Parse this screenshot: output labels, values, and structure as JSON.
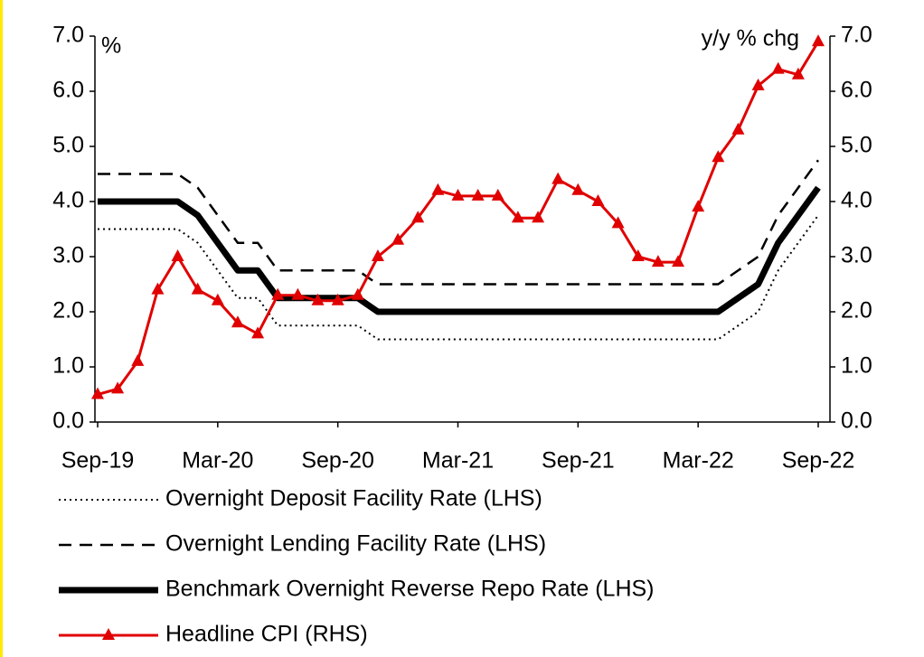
{
  "chart_data": {
    "type": "line",
    "y_label": "%",
    "y2_label": "y/y % chg",
    "categories": [
      "Sep-19",
      null,
      null,
      null,
      null,
      null,
      "Mar-20",
      null,
      null,
      null,
      null,
      null,
      "Sep-20",
      null,
      null,
      null,
      null,
      null,
      "Mar-21",
      null,
      null,
      null,
      null,
      null,
      "Sep-21",
      null,
      null,
      null,
      null,
      null,
      "Mar-22",
      null,
      null,
      null,
      null,
      null,
      "Sep-22"
    ],
    "ylim": [
      0,
      7
    ],
    "yticks": [
      {
        "value": 0,
        "label": "0.0"
      },
      {
        "value": 1,
        "label": "1.0"
      },
      {
        "value": 2,
        "label": "2.0"
      },
      {
        "value": 3,
        "label": "3.0"
      },
      {
        "value": 4,
        "label": "4.0"
      },
      {
        "value": 5,
        "label": "5.0"
      },
      {
        "value": 6,
        "label": "6.0"
      },
      {
        "value": 7,
        "label": "7.0"
      }
    ],
    "y2lim": [
      0,
      7
    ],
    "y2ticks": [
      {
        "value": 0,
        "label": "0.0"
      },
      {
        "value": 1,
        "label": "1.0"
      },
      {
        "value": 2,
        "label": "2.0"
      },
      {
        "value": 3,
        "label": "3.0"
      },
      {
        "value": 4,
        "label": "4.0"
      },
      {
        "value": 5,
        "label": "5.0"
      },
      {
        "value": 6,
        "label": "6.0"
      },
      {
        "value": 7,
        "label": "7.0"
      }
    ],
    "grid": false,
    "series": [
      {
        "name": "Overnight Deposit Facility Rate (LHS)",
        "color": "#000000",
        "style": "dotted",
        "width": 2,
        "values": [
          3.5,
          3.5,
          3.5,
          3.5,
          3.5,
          3.25,
          2.75,
          2.25,
          2.25,
          1.75,
          1.75,
          1.75,
          1.75,
          1.75,
          1.5,
          1.5,
          1.5,
          1.5,
          1.5,
          1.5,
          1.5,
          1.5,
          1.5,
          1.5,
          1.5,
          1.5,
          1.5,
          1.5,
          1.5,
          1.5,
          1.5,
          1.5,
          1.75,
          2.0,
          2.75,
          3.25,
          3.75
        ]
      },
      {
        "name": "Overnight Lending Facility Rate (LHS)",
        "color": "#000000",
        "style": "dashed",
        "width": 2.5,
        "values": [
          4.5,
          4.5,
          4.5,
          4.5,
          4.5,
          4.25,
          3.75,
          3.25,
          3.25,
          2.75,
          2.75,
          2.75,
          2.75,
          2.75,
          2.5,
          2.5,
          2.5,
          2.5,
          2.5,
          2.5,
          2.5,
          2.5,
          2.5,
          2.5,
          2.5,
          2.5,
          2.5,
          2.5,
          2.5,
          2.5,
          2.5,
          2.5,
          2.75,
          3.0,
          3.75,
          4.25,
          4.75
        ]
      },
      {
        "name": "Benchmark Overnight Reverse Repo Rate (LHS)",
        "color": "#000000",
        "style": "solid",
        "width": 7,
        "values": [
          4.0,
          4.0,
          4.0,
          4.0,
          4.0,
          3.75,
          3.25,
          2.75,
          2.75,
          2.25,
          2.25,
          2.25,
          2.25,
          2.25,
          2.0,
          2.0,
          2.0,
          2.0,
          2.0,
          2.0,
          2.0,
          2.0,
          2.0,
          2.0,
          2.0,
          2.0,
          2.0,
          2.0,
          2.0,
          2.0,
          2.0,
          2.0,
          2.25,
          2.5,
          3.25,
          3.75,
          4.25
        ]
      },
      {
        "name": "Headline CPI (RHS)",
        "color": "#e00000",
        "style": "solid",
        "width": 3,
        "marker": "triangle",
        "axis": "y2",
        "values": [
          0.5,
          0.6,
          1.1,
          2.4,
          3.0,
          2.4,
          2.2,
          1.8,
          1.6,
          2.3,
          2.3,
          2.2,
          2.2,
          2.3,
          3.0,
          3.3,
          3.7,
          4.2,
          4.1,
          4.1,
          4.1,
          3.7,
          3.7,
          4.4,
          4.2,
          4.0,
          3.6,
          3.0,
          2.9,
          2.9,
          3.9,
          4.8,
          5.3,
          6.1,
          6.4,
          6.3,
          6.9
        ]
      }
    ]
  }
}
